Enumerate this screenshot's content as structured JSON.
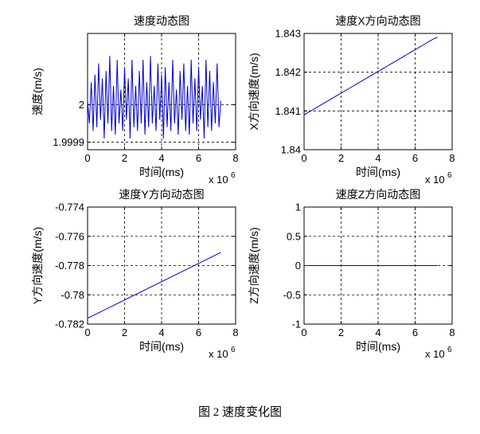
{
  "figure_caption": "图 2  速度变化图",
  "chart_data": [
    {
      "type": "line",
      "title": "速度动态图",
      "xlabel": "时间(ms)",
      "ylabel": "速度(m/s)",
      "x_exponent_base": "x 10",
      "x_exponent_power": "6",
      "xlim": [
        0,
        8
      ],
      "ylim": [
        1.99988,
        2.00019
      ],
      "xticks": [
        0,
        2,
        4,
        6,
        8
      ],
      "xtick_labels": [
        "0",
        "2",
        "4",
        "6",
        "8"
      ],
      "yticks": [
        1.9999,
        2.0
      ],
      "ytick_labels": [
        "1.9999",
        "2"
      ],
      "grid": true,
      "color": "#0000cc",
      "series": [
        {
          "x": [
            0.0,
            0.1,
            0.2,
            0.3,
            0.4,
            0.5,
            0.6,
            0.7,
            0.8,
            0.9,
            1.0,
            1.1,
            1.2,
            1.3,
            1.4,
            1.5,
            1.6,
            1.7,
            1.8,
            1.9,
            2.0,
            2.1,
            2.2,
            2.3,
            2.4,
            2.5,
            2.6,
            2.7,
            2.8,
            2.9,
            3.0,
            3.1,
            3.2,
            3.3,
            3.4,
            3.5,
            3.6,
            3.7,
            3.8,
            3.9,
            4.0,
            4.1,
            4.2,
            4.3,
            4.4,
            4.5,
            4.6,
            4.7,
            4.8,
            4.9,
            5.0,
            5.1,
            5.2,
            5.3,
            5.4,
            5.5,
            5.6,
            5.7,
            5.8,
            5.9,
            6.0,
            6.1,
            6.2,
            6.3,
            6.4,
            6.5,
            6.6,
            6.7,
            6.8,
            6.9,
            7.0,
            7.1,
            7.2
          ],
          "y": [
            2.00001,
            1.99995,
            2.00006,
            1.99993,
            2.00008,
            1.99994,
            2.00011,
            1.99996,
            2.00007,
            1.99991,
            2.00009,
            1.99995,
            2.00013,
            1.99993,
            2.00005,
            1.99992,
            2.00012,
            1.99995,
            2.00004,
            1.99993,
            2.0001,
            1.99996,
            2.00007,
            1.99991,
            2.00012,
            1.99994,
            2.00005,
            1.99993,
            2.00009,
            1.99995,
            2.00012,
            1.99992,
            2.00006,
            1.99994,
            2.00013,
            1.99995,
            2.00005,
            1.99993,
            2.00011,
            1.99996,
            2.00008,
            1.99991,
            2.0001,
            1.99994,
            2.00006,
            1.99993,
            2.00012,
            1.99995,
            2.00004,
            1.99992,
            2.00009,
            1.99996,
            2.00011,
            1.99993,
            2.00005,
            1.99992,
            2.00012,
            1.99995,
            2.00007,
            1.99993,
            2.0001,
            1.99996,
            2.00005,
            1.99991,
            2.00012,
            1.99994,
            2.00009,
            1.99993,
            2.00006,
            1.99995,
            2.00011,
            1.99994,
            2.00001
          ]
        }
      ]
    },
    {
      "type": "line",
      "title": "速度X方向动态图",
      "xlabel": "时间(ms)",
      "ylabel": "X方向速度(m/s)",
      "x_exponent_base": "x 10",
      "x_exponent_power": "6",
      "xlim": [
        0,
        8
      ],
      "ylim": [
        1.84,
        1.843
      ],
      "xticks": [
        0,
        2,
        4,
        6,
        8
      ],
      "xtick_labels": [
        "0",
        "2",
        "4",
        "6",
        "8"
      ],
      "yticks": [
        1.84,
        1.841,
        1.842,
        1.843
      ],
      "ytick_labels": [
        "1.84",
        "1.841",
        "1.842",
        "1.843"
      ],
      "grid": true,
      "color": "#0000cc",
      "series": [
        {
          "x": [
            0.0,
            0.25,
            0.5,
            0.75,
            1.0,
            1.25,
            1.5,
            1.75,
            2.0,
            2.25,
            2.5,
            2.75,
            3.0,
            3.25,
            3.5,
            3.75,
            4.0,
            4.25,
            4.5,
            4.75,
            5.0,
            5.25,
            5.5,
            5.75,
            6.0,
            6.25,
            6.5,
            6.75,
            7.0,
            7.2
          ],
          "y": [
            1.8409,
            1.84097,
            1.84104,
            1.84111,
            1.84118,
            1.84125,
            1.84132,
            1.84139,
            1.84146,
            1.84153,
            1.8416,
            1.84167,
            1.84174,
            1.84181,
            1.84188,
            1.84195,
            1.84202,
            1.84209,
            1.84216,
            1.84223,
            1.8423,
            1.84237,
            1.84244,
            1.84251,
            1.84258,
            1.84265,
            1.84272,
            1.84279,
            1.84286,
            1.8429
          ]
        }
      ]
    },
    {
      "type": "line",
      "title": "速度Y方向动态图",
      "xlabel": "时间(ms)",
      "ylabel": "Y方向速度(m/s)",
      "x_exponent_base": "x 10",
      "x_exponent_power": "6",
      "xlim": [
        0,
        8
      ],
      "ylim": [
        -0.782,
        -0.774
      ],
      "xticks": [
        0,
        2,
        4,
        6,
        8
      ],
      "xtick_labels": [
        "0",
        "2",
        "4",
        "6",
        "8"
      ],
      "yticks": [
        -0.782,
        -0.78,
        -0.778,
        -0.776,
        -0.774
      ],
      "ytick_labels": [
        "-0.782",
        "-0.78",
        "-0.778",
        "-0.776",
        "-0.774"
      ],
      "grid": true,
      "color": "#0000cc",
      "series": [
        {
          "x": [
            0.0,
            7.2
          ],
          "y": [
            -0.7816,
            -0.7771
          ]
        }
      ]
    },
    {
      "type": "line",
      "title": "速度Z方向动态图",
      "xlabel": "时间(ms)",
      "ylabel": "Z方向速度(m/s)",
      "x_exponent_base": "x 10",
      "x_exponent_power": "6",
      "xlim": [
        0,
        8
      ],
      "ylim": [
        -1,
        1
      ],
      "xticks": [
        0,
        2,
        4,
        6,
        8
      ],
      "xtick_labels": [
        "0",
        "2",
        "4",
        "6",
        "8"
      ],
      "yticks": [
        -1,
        -0.5,
        0,
        0.5,
        1
      ],
      "ytick_labels": [
        "-1",
        "-0.5",
        "0",
        "0.5",
        "1"
      ],
      "grid": true,
      "color": "#0000cc",
      "series": [
        {
          "x": [
            0.0,
            7.2
          ],
          "y": [
            0,
            0
          ]
        }
      ]
    }
  ]
}
